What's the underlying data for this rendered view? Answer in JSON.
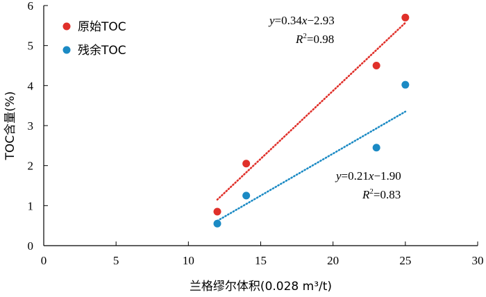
{
  "chart_data": {
    "type": "scatter",
    "title": "",
    "xlabel": "兰格缪尔体积(0.028 m³/t)",
    "ylabel": "TOC含量(%)",
    "xlim": [
      0,
      30
    ],
    "ylim": [
      0,
      6
    ],
    "xticks": [
      0,
      5,
      10,
      15,
      20,
      25,
      30
    ],
    "yticks": [
      0,
      1,
      2,
      3,
      4,
      5,
      6
    ],
    "legend_position": "top-left",
    "grid": false,
    "series": [
      {
        "name": "原始TOC",
        "color": "#e0302a",
        "x": [
          12,
          14,
          23,
          25
        ],
        "y": [
          0.85,
          2.05,
          4.5,
          5.7
        ],
        "trendline": {
          "slope": 0.34,
          "intercept": -2.93,
          "x_range": [
            12,
            25
          ],
          "style": "dotted"
        },
        "equation": {
          "y": "y",
          "eq": "=0.34",
          "x": "x",
          "rest": "−2.93",
          "r": "R",
          "r2val": "=0.98"
        }
      },
      {
        "name": "残余TOC",
        "color": "#1b8ac4",
        "x": [
          12,
          14,
          23,
          25
        ],
        "y": [
          0.55,
          1.25,
          2.45,
          4.02
        ],
        "trendline": {
          "slope": 0.21,
          "intercept": -1.9,
          "x_range": [
            12,
            25
          ],
          "style": "dotted"
        },
        "equation": {
          "y": "y",
          "eq": "=0.21",
          "x": "x",
          "rest": "−1.90",
          "r": "R",
          "r2val": "=0.83"
        }
      }
    ]
  }
}
